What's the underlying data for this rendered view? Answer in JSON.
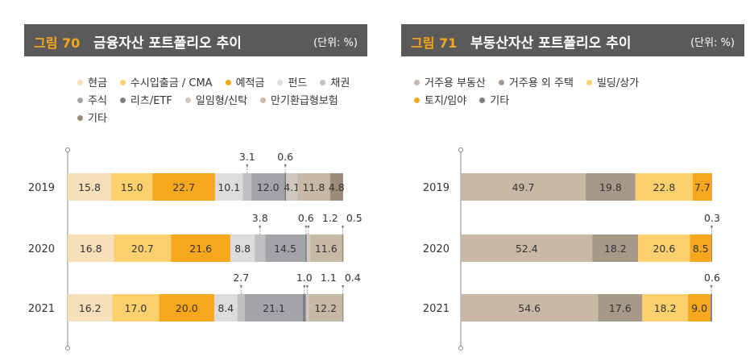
{
  "charts": [
    {
      "figure": "그림 70",
      "title": "금융자산 포트폴리오 추이",
      "unit": "(단위: %)",
      "legend": [
        {
          "label": "현금",
          "color": "#f6dfb9"
        },
        {
          "label": "수시입출금 / CMA",
          "color": "#fdd06e"
        },
        {
          "label": "예적금",
          "color": "#f6a71c"
        },
        {
          "label": "펀드",
          "color": "#dcdcdc"
        },
        {
          "label": "채권",
          "color": "#c0c0c0"
        },
        {
          "label": "주식",
          "color": "#a2a4a7"
        },
        {
          "label": "리츠/ETF",
          "color": "#7d7f82"
        },
        {
          "label": "일임형/신탁",
          "color": "#cfc8c0"
        },
        {
          "label": "만기환급형보험",
          "color": "#c8b8a6"
        },
        {
          "label": "기타",
          "color": "#9c8b79"
        }
      ]
    },
    {
      "figure": "그림 71",
      "title": "부동산자산 포트폴리오 추이",
      "unit": "(단위: %)",
      "legend": [
        {
          "label": "거주용 부동산",
          "color": "#c9b8a5"
        },
        {
          "label": "거주용 외 주택",
          "color": "#a7998a"
        },
        {
          "label": "빌딩/상가",
          "color": "#fdd06e"
        },
        {
          "label": "토지/임야",
          "color": "#f6a71c"
        },
        {
          "label": "기타",
          "color": "#7d7f82"
        }
      ]
    }
  ],
  "chart_data": [
    {
      "type": "bar",
      "orientation": "horizontal",
      "stacked": true,
      "title": "금융자산 포트폴리오 추이",
      "unit": "%",
      "categories": [
        "2019",
        "2020",
        "2021"
      ],
      "series": [
        {
          "name": "현금",
          "color": "#f6dfb9",
          "values": [
            15.8,
            16.8,
            16.2
          ]
        },
        {
          "name": "수시입출금 / CMA",
          "color": "#fdd06e",
          "values": [
            15.0,
            20.7,
            17.0
          ]
        },
        {
          "name": "예적금",
          "color": "#f6a71c",
          "values": [
            22.7,
            21.6,
            20.0
          ]
        },
        {
          "name": "펀드",
          "color": "#dcdcdc",
          "values": [
            10.1,
            8.8,
            8.4
          ]
        },
        {
          "name": "채권",
          "color": "#c0c0c0",
          "values": [
            3.1,
            3.8,
            2.7
          ]
        },
        {
          "name": "주식",
          "color": "#a2a4a7",
          "values": [
            12.0,
            14.5,
            21.1
          ]
        },
        {
          "name": "리츠/ETF",
          "color": "#7d7f82",
          "values": [
            0.6,
            0.6,
            1.0
          ]
        },
        {
          "name": "일임형/신탁",
          "color": "#cfc8c0",
          "values": [
            4.1,
            1.2,
            1.1
          ]
        },
        {
          "name": "만기환급형보험",
          "color": "#c8b8a6",
          "values": [
            11.8,
            11.6,
            12.2
          ]
        },
        {
          "name": "기타",
          "color": "#9c8b79",
          "values": [
            4.8,
            0.5,
            0.4
          ]
        }
      ],
      "outside_label_series": [
        [
          4,
          6
        ],
        [
          4,
          6,
          7,
          9
        ],
        [
          4,
          6,
          7,
          9
        ]
      ]
    },
    {
      "type": "bar",
      "orientation": "horizontal",
      "stacked": true,
      "title": "부동산자산 포트폴리오 추이",
      "unit": "%",
      "categories": [
        "2019",
        "2020",
        "2021"
      ],
      "series": [
        {
          "name": "거주용 부동산",
          "color": "#c9b8a5",
          "values": [
            49.7,
            52.4,
            54.6
          ]
        },
        {
          "name": "거주용 외 주택",
          "color": "#a7998a",
          "values": [
            19.8,
            18.2,
            17.6
          ]
        },
        {
          "name": "빌딩/상가",
          "color": "#fdd06e",
          "values": [
            22.8,
            20.6,
            18.2
          ]
        },
        {
          "name": "토지/임야",
          "color": "#f6a71c",
          "values": [
            7.7,
            8.5,
            9.0
          ]
        },
        {
          "name": "기타",
          "color": "#7d7f82",
          "values": [
            0.0,
            0.3,
            0.6
          ]
        }
      ],
      "outside_label_series": [
        [],
        [
          4
        ],
        [
          4
        ]
      ]
    }
  ]
}
